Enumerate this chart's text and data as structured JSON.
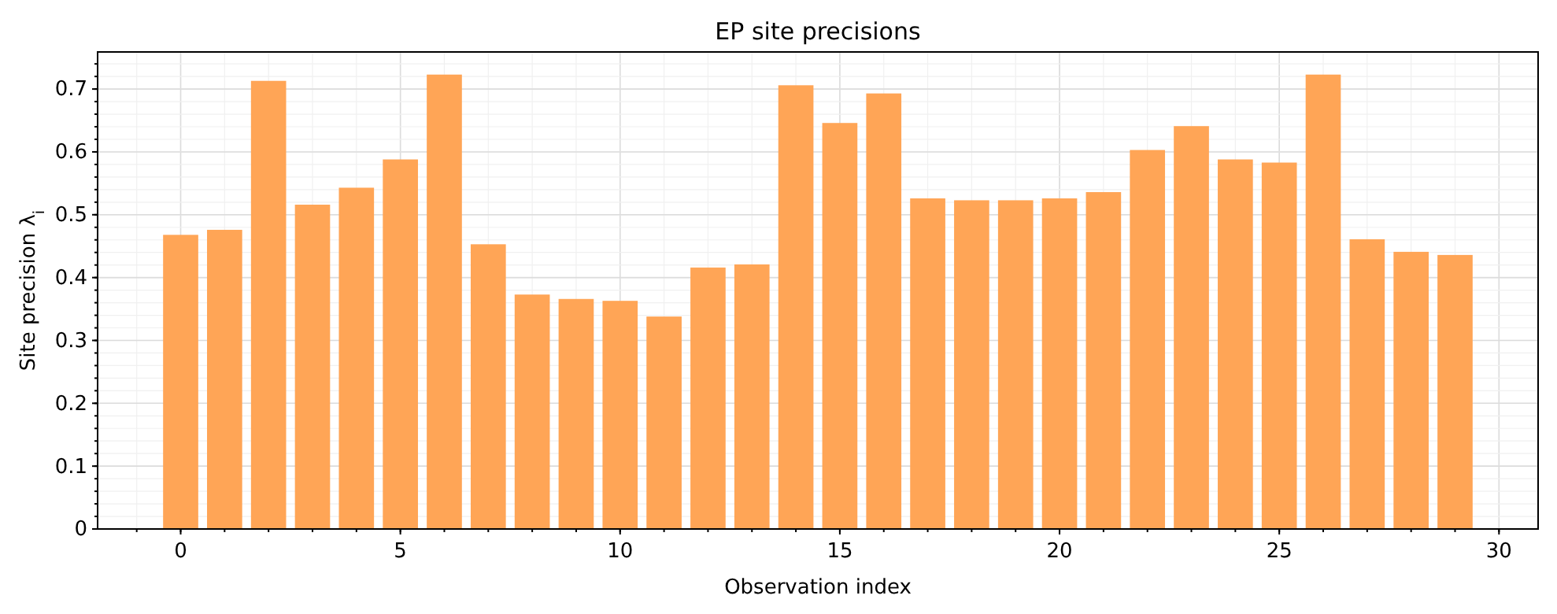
{
  "chart_data": {
    "type": "bar",
    "title": "EP site precisions",
    "xlabel": "Observation index",
    "ylabel": "Site precision λ$_{i}$",
    "x": [
      0,
      1,
      2,
      3,
      4,
      5,
      6,
      7,
      8,
      9,
      10,
      11,
      12,
      13,
      14,
      15,
      16,
      17,
      18,
      19,
      20,
      21,
      22,
      23,
      24,
      25,
      26,
      27,
      28,
      29
    ],
    "values": [
      0.468,
      0.476,
      0.713,
      0.516,
      0.543,
      0.588,
      0.723,
      0.453,
      0.373,
      0.366,
      0.363,
      0.338,
      0.416,
      0.421,
      0.706,
      0.646,
      0.693,
      0.526,
      0.523,
      0.523,
      0.526,
      0.536,
      0.603,
      0.641,
      0.588,
      0.583,
      0.723,
      0.461,
      0.441,
      0.436
    ],
    "color": "#ffa556",
    "xlim": [
      -1.89,
      30.89
    ],
    "xticks": [
      0,
      5,
      10,
      15,
      20,
      25,
      30
    ],
    "ylim": [
      0,
      0.759
    ],
    "yticks": [
      0,
      0.1,
      0.2,
      0.3,
      0.4,
      0.5,
      0.6,
      0.7
    ],
    "grid": true
  }
}
